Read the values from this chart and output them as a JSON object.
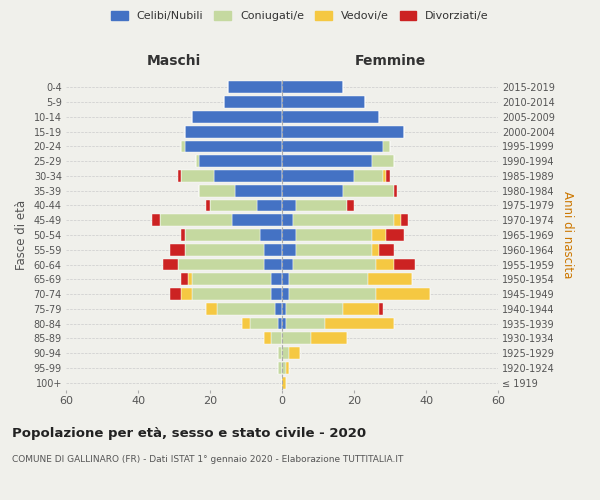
{
  "age_groups": [
    "100+",
    "95-99",
    "90-94",
    "85-89",
    "80-84",
    "75-79",
    "70-74",
    "65-69",
    "60-64",
    "55-59",
    "50-54",
    "45-49",
    "40-44",
    "35-39",
    "30-34",
    "25-29",
    "20-24",
    "15-19",
    "10-14",
    "5-9",
    "0-4"
  ],
  "birth_years": [
    "≤ 1919",
    "1920-1924",
    "1925-1929",
    "1930-1934",
    "1935-1939",
    "1940-1944",
    "1945-1949",
    "1950-1954",
    "1955-1959",
    "1960-1964",
    "1965-1969",
    "1970-1974",
    "1975-1979",
    "1980-1984",
    "1985-1989",
    "1990-1994",
    "1995-1999",
    "2000-2004",
    "2005-2009",
    "2010-2014",
    "2015-2019"
  ],
  "colors": {
    "celibe": "#4472C4",
    "coniugato": "#c5d9a0",
    "vedovo": "#f5c842",
    "divorziato": "#cc2222"
  },
  "maschi": {
    "celibe": [
      0,
      0,
      0,
      0,
      1,
      2,
      3,
      3,
      5,
      5,
      6,
      14,
      7,
      13,
      19,
      23,
      27,
      27,
      25,
      16,
      15
    ],
    "coniugato": [
      0,
      1,
      1,
      3,
      8,
      16,
      22,
      22,
      24,
      22,
      21,
      20,
      13,
      10,
      9,
      1,
      1,
      0,
      0,
      0,
      0
    ],
    "vedovo": [
      0,
      0,
      0,
      2,
      2,
      3,
      3,
      1,
      0,
      0,
      0,
      0,
      0,
      0,
      0,
      0,
      0,
      0,
      0,
      0,
      0
    ],
    "divorziato": [
      0,
      0,
      0,
      0,
      0,
      0,
      3,
      2,
      4,
      4,
      1,
      2,
      1,
      0,
      1,
      0,
      0,
      0,
      0,
      0,
      0
    ]
  },
  "femmine": {
    "celibe": [
      0,
      0,
      0,
      0,
      1,
      1,
      2,
      2,
      3,
      4,
      4,
      3,
      4,
      17,
      20,
      25,
      28,
      34,
      27,
      23,
      17
    ],
    "coniugato": [
      0,
      1,
      2,
      8,
      11,
      16,
      24,
      22,
      23,
      21,
      21,
      28,
      14,
      14,
      8,
      6,
      2,
      0,
      0,
      0,
      0
    ],
    "vedovo": [
      1,
      1,
      3,
      10,
      19,
      10,
      15,
      12,
      5,
      2,
      4,
      2,
      0,
      0,
      1,
      0,
      0,
      0,
      0,
      0,
      0
    ],
    "divorziato": [
      0,
      0,
      0,
      0,
      0,
      1,
      0,
      0,
      6,
      4,
      5,
      2,
      2,
      1,
      1,
      0,
      0,
      0,
      0,
      0,
      0
    ]
  },
  "xlim": 60,
  "title": "Popolazione per età, sesso e stato civile - 2020",
  "subtitle": "COMUNE DI GALLINARO (FR) - Dati ISTAT 1° gennaio 2020 - Elaborazione TUTTITALIA.IT",
  "xlabel_left": "Maschi",
  "xlabel_right": "Femmine",
  "ylabel_left": "Fasce di età",
  "ylabel_right": "Anni di nascita",
  "legend_labels": [
    "Celibi/Nubili",
    "Coniugati/e",
    "Vedovi/e",
    "Divorziati/e"
  ],
  "bg_color": "#f0f0eb"
}
